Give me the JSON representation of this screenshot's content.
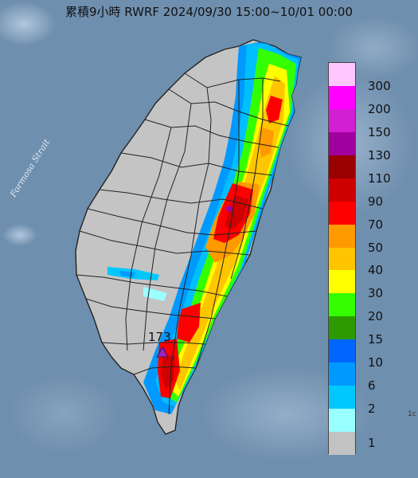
{
  "title": "累積9小時 RWRF 2024/09/30 15:00~10/01 00:00",
  "strait_label": "Formosa Strait",
  "max_annotation": "173",
  "edge_label": "1c",
  "legend": {
    "levels": [
      {
        "label": "300",
        "color": "#ffc6ff"
      },
      {
        "label": "200",
        "color": "#ff00ff"
      },
      {
        "label": "150",
        "color": "#d21fd2"
      },
      {
        "label": "130",
        "color": "#a0009f"
      },
      {
        "label": "110",
        "color": "#9a0000"
      },
      {
        "label": "90",
        "color": "#cf0000"
      },
      {
        "label": "70",
        "color": "#ff0000"
      },
      {
        "label": "50",
        "color": "#ff9a00"
      },
      {
        "label": "40",
        "color": "#ffc600"
      },
      {
        "label": "30",
        "color": "#ffff00"
      },
      {
        "label": "20",
        "color": "#33ff00"
      },
      {
        "label": "15",
        "color": "#2d9a00"
      },
      {
        "label": "10",
        "color": "#0066ff"
      },
      {
        "label": "6",
        "color": "#0099ff"
      },
      {
        "label": "2",
        "color": "#00c8ff"
      },
      {
        "label": "1",
        "color": "#99ffff"
      },
      {
        "label": "",
        "color": "#c2c2c2"
      }
    ]
  },
  "colors": {
    "sea": "#6f8fae",
    "land": "#c4c4c4",
    "boundary": "#222222"
  }
}
